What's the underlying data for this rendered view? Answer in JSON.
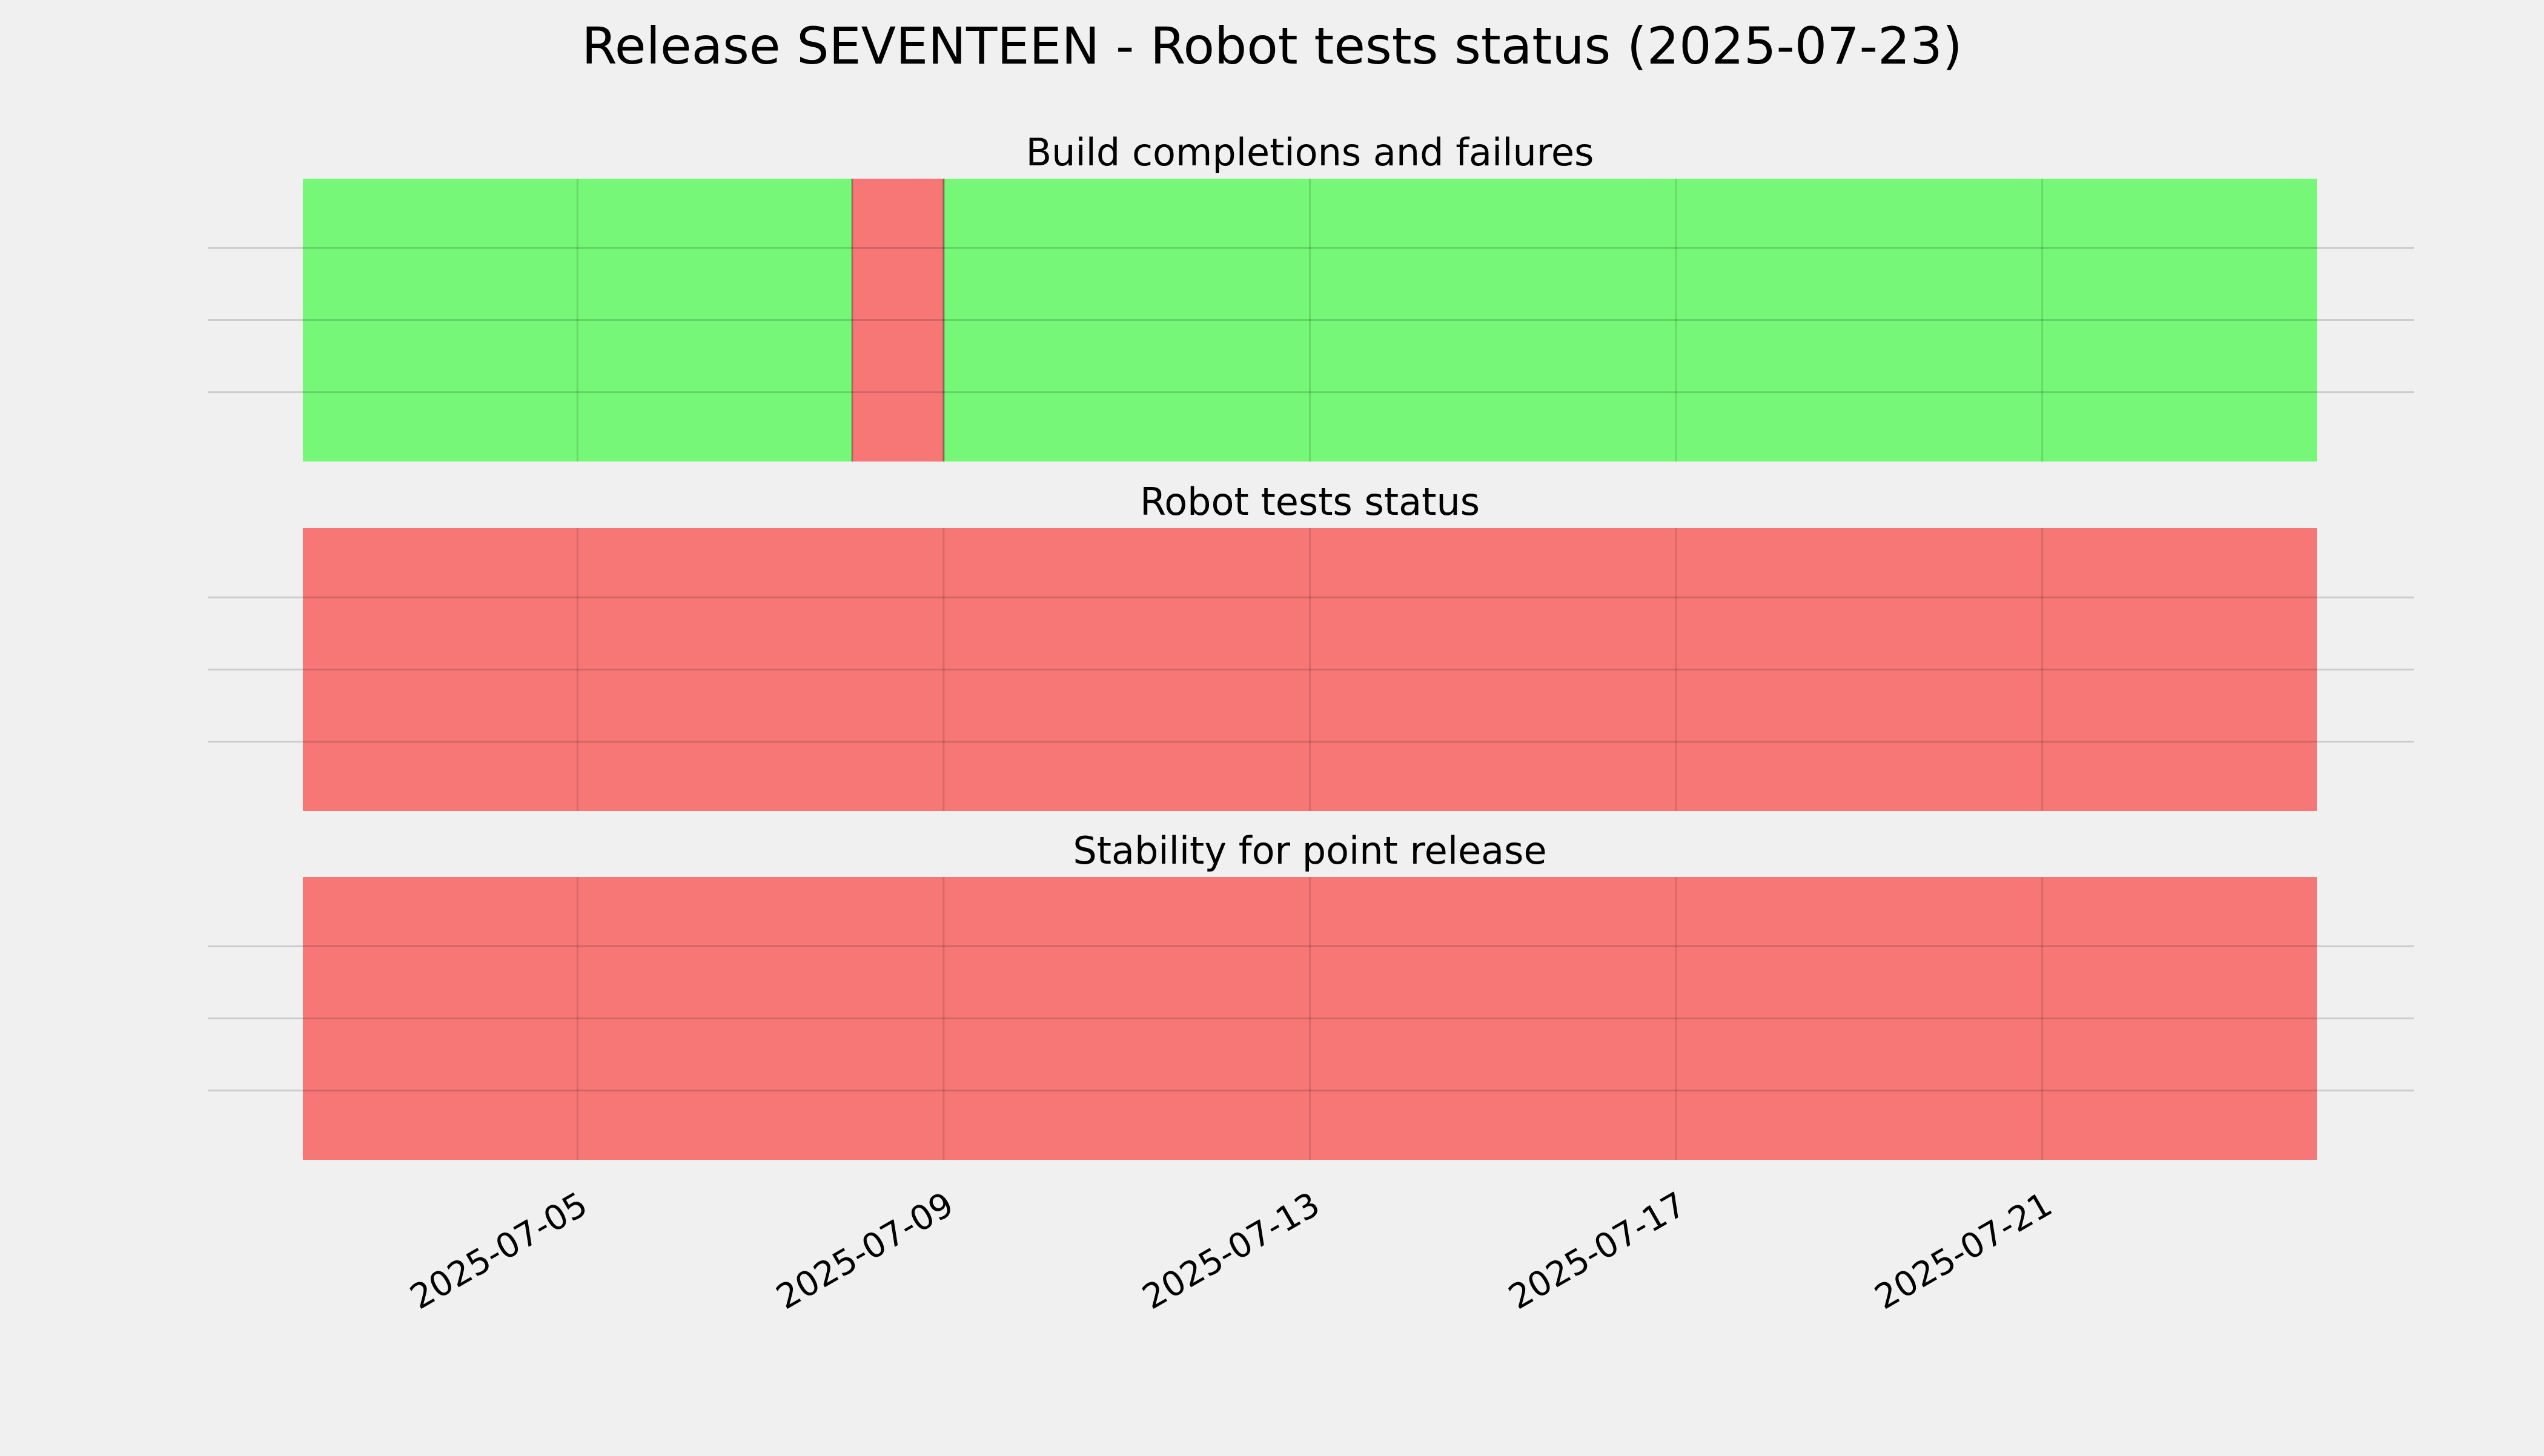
{
  "title": "Release SEVENTEEN - Robot tests status (2025-07-23)",
  "colors": {
    "background": "#f0f0f0",
    "pass": "#77f777",
    "fail": "#f77777",
    "grid": "#cbcbcb"
  },
  "chart_data": {
    "type": "timeline",
    "x_range": [
      "2025-07-02",
      "2025-07-24"
    ],
    "x_ticks": [
      "2025-07-05",
      "2025-07-09",
      "2025-07-13",
      "2025-07-17",
      "2025-07-21"
    ],
    "grid": true,
    "panels": [
      {
        "title": "Build completions and failures",
        "segments": [
          {
            "start": "2025-07-02",
            "end": "2025-07-08",
            "status": "pass"
          },
          {
            "start": "2025-07-08",
            "end": "2025-07-09",
            "status": "fail"
          },
          {
            "start": "2025-07-09",
            "end": "2025-07-24",
            "status": "pass"
          }
        ]
      },
      {
        "title": "Robot tests status",
        "segments": [
          {
            "start": "2025-07-02",
            "end": "2025-07-24",
            "status": "fail"
          }
        ]
      },
      {
        "title": "Stability for point release",
        "segments": [
          {
            "start": "2025-07-02",
            "end": "2025-07-24",
            "status": "fail"
          }
        ]
      }
    ]
  }
}
